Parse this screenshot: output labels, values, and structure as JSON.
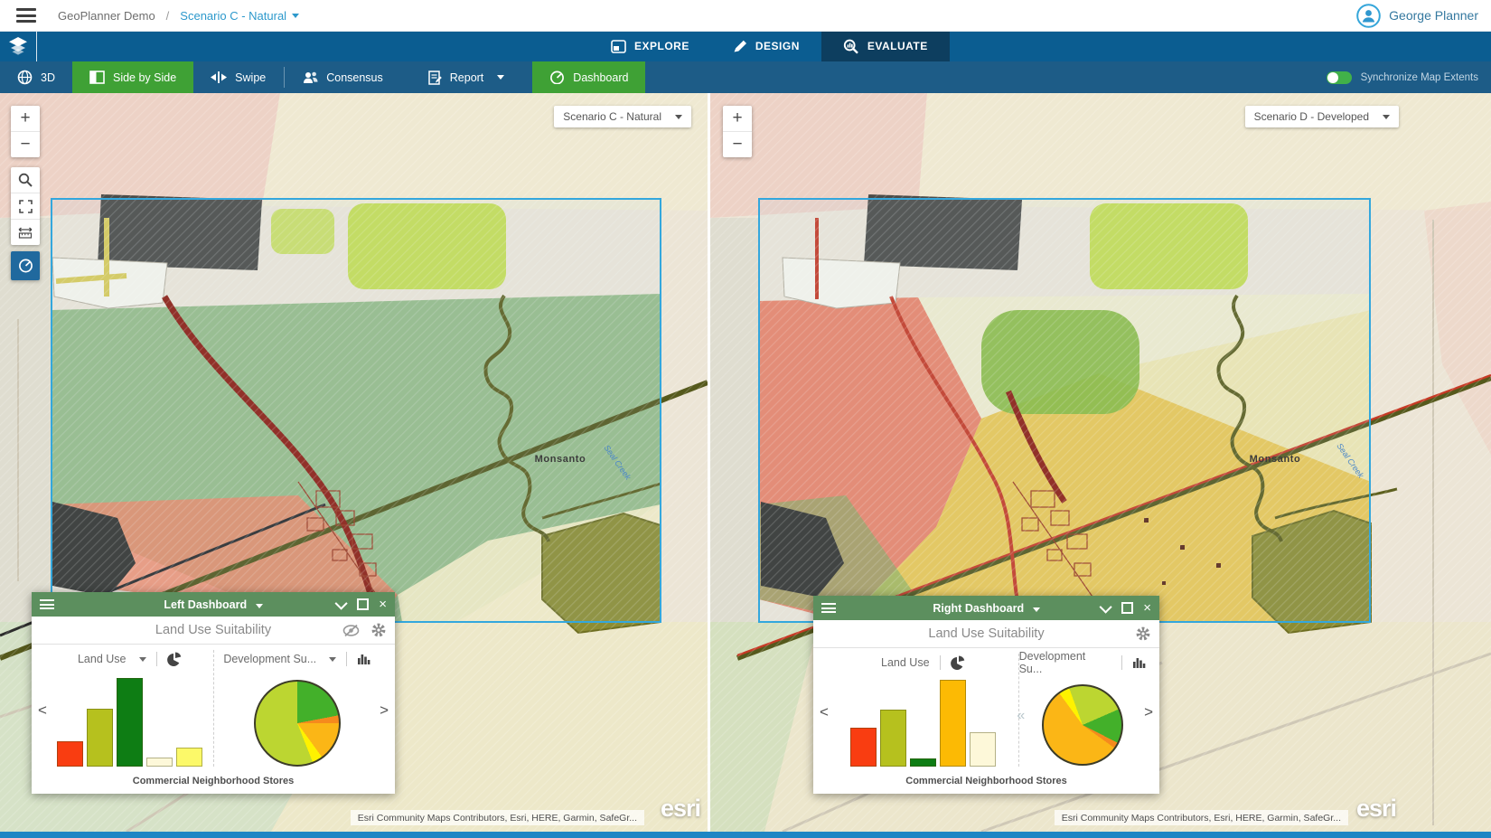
{
  "header": {
    "app_name": "GeoPlanner Demo",
    "separator": "/",
    "scenario": "Scenario C - Natural",
    "user_name": "George Planner"
  },
  "nav": {
    "tabs": [
      {
        "label": "EXPLORE",
        "active": false
      },
      {
        "label": "DESIGN",
        "active": false
      },
      {
        "label": "EVALUATE",
        "active": true
      }
    ]
  },
  "toolbar": {
    "buttons": [
      {
        "label": "3D",
        "active": false
      },
      {
        "label": "Side by Side",
        "active": true
      },
      {
        "label": "Swipe",
        "active": false
      },
      {
        "label": "Consensus",
        "active": false
      },
      {
        "label": "Report",
        "active": false
      },
      {
        "label": "Dashboard",
        "active": true
      }
    ],
    "sync_label": "Synchronize Map Extents",
    "sync_on": true
  },
  "icons": {
    "plus": "+",
    "minus": "−",
    "chevron_left": "<",
    "chevron_right": ">",
    "collapse_left": "«",
    "close": "×"
  },
  "left_map": {
    "scenario": "Scenario C - Natural",
    "place_label": "Monsanto",
    "creek_label": "Seal Creek",
    "attribution": "Esri Community Maps Contributors, Esri, HERE, Garmin, SafeGr...",
    "logo": "esri"
  },
  "right_map": {
    "scenario": "Scenario D - Developed",
    "place_label": "Monsanto",
    "creek_label": "Seal Creek",
    "attribution": "Esri Community Maps Contributors, Esri, HERE, Garmin, SafeGr...",
    "logo": "esri"
  },
  "left_dashboard": {
    "title": "Left Dashboard",
    "subtitle": "Land Use Suitability",
    "bar_panel_label": "Land Use",
    "pie_panel_label": "Development Su...",
    "caption": "Commercial Neighborhood Stores"
  },
  "right_dashboard": {
    "title": "Right Dashboard",
    "subtitle": "Land Use Suitability",
    "bar_panel_label": "Land Use",
    "pie_panel_label": "Development Su...",
    "caption": "Commercial Neighborhood Stores"
  },
  "colors": {
    "accent_orange": "#d45519",
    "active_green": "#3fa135",
    "dashboard_green": "#5c8f5e",
    "blue_bar": "#0b5d91",
    "extent_blue": "#33a7dd"
  },
  "chart_data": [
    {
      "type": "bar",
      "dashboard": "Left Dashboard",
      "title": "Land Use",
      "caption": "Commercial Neighborhood Stores",
      "values": [
        28,
        64,
        98,
        10,
        21
      ],
      "colors": [
        "#f93d11",
        "#b6c11e",
        "#0e7d14",
        "#fdf8d9",
        "#fcf969"
      ],
      "ylim": [
        0,
        100
      ]
    },
    {
      "type": "pie",
      "dashboard": "Left Dashboard",
      "title": "Development Su...",
      "start_deg": 0,
      "slices": [
        {
          "pct": 22,
          "color": "#43b02a"
        },
        {
          "pct": 3,
          "color": "#f58a1d"
        },
        {
          "pct": 15,
          "color": "#fbb616"
        },
        {
          "pct": 4,
          "color": "#fef200"
        },
        {
          "pct": 56,
          "color": "#bcd631"
        }
      ]
    },
    {
      "type": "bar",
      "dashboard": "Right Dashboard",
      "title": "Land Use",
      "caption": "Commercial Neighborhood Stores",
      "values": [
        45,
        66,
        9,
        100,
        40
      ],
      "colors": [
        "#f93d11",
        "#b6c11e",
        "#0e7d14",
        "#fcba04",
        "#fdf8d9"
      ],
      "ylim": [
        0,
        100
      ]
    },
    {
      "type": "pie",
      "dashboard": "Right Dashboard",
      "title": "Development Su...",
      "start_deg": -20,
      "slices": [
        {
          "pct": 24,
          "color": "#bcd631"
        },
        {
          "pct": 14,
          "color": "#43b02a"
        },
        {
          "pct": 2.5,
          "color": "#f58a1d"
        },
        {
          "pct": 55,
          "color": "#fbb616"
        },
        {
          "pct": 4.5,
          "color": "#fef200"
        }
      ]
    }
  ]
}
